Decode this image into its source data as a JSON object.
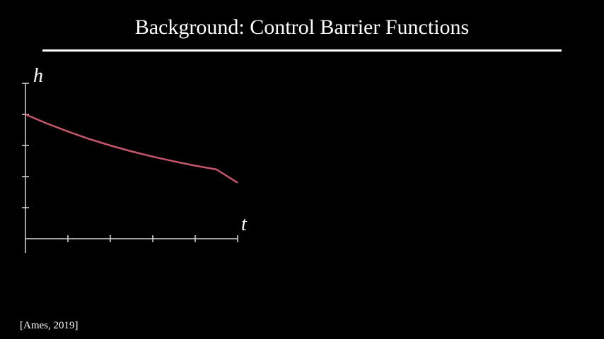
{
  "slide": {
    "title": "Background: Control Barrier Functions",
    "citation": "[Ames, 2019]"
  },
  "chart_data": {
    "type": "line",
    "xlabel": "t",
    "ylabel": "h",
    "xlim": [
      0,
      5
    ],
    "ylim": [
      0,
      5
    ],
    "x_ticks": [
      1,
      2,
      3,
      4,
      5
    ],
    "y_ticks": [
      1,
      2,
      3,
      4
    ],
    "grid": false,
    "series": [
      {
        "color": "#c8566a",
        "x": [
          0,
          0.5,
          1,
          1.5,
          2,
          2.5,
          3,
          3.5,
          4,
          4.5,
          5
        ],
        "y": [
          4.0,
          3.71,
          3.45,
          3.21,
          3.0,
          2.81,
          2.64,
          2.49,
          2.35,
          2.23,
          1.8
        ]
      }
    ]
  }
}
